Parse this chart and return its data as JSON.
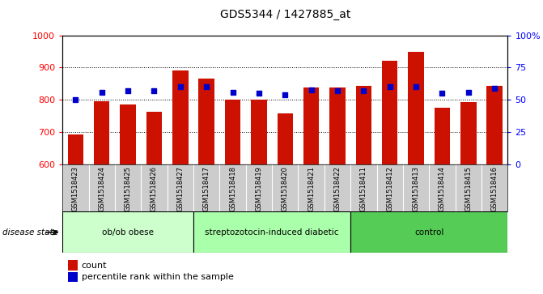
{
  "title": "GDS5344 / 1427885_at",
  "samples": [
    "GSM1518423",
    "GSM1518424",
    "GSM1518425",
    "GSM1518426",
    "GSM1518427",
    "GSM1518417",
    "GSM1518418",
    "GSM1518419",
    "GSM1518420",
    "GSM1518421",
    "GSM1518422",
    "GSM1518411",
    "GSM1518412",
    "GSM1518413",
    "GSM1518414",
    "GSM1518415",
    "GSM1518416"
  ],
  "counts": [
    693,
    797,
    787,
    763,
    890,
    865,
    800,
    800,
    758,
    838,
    838,
    843,
    921,
    948,
    776,
    793,
    843
  ],
  "percentiles": [
    50,
    56,
    57,
    57,
    60,
    60,
    56,
    55,
    54,
    58,
    57,
    57,
    60,
    60,
    55,
    56,
    59
  ],
  "groups": [
    {
      "label": "ob/ob obese",
      "start": 0,
      "end": 5
    },
    {
      "label": "streptozotocin-induced diabetic",
      "start": 5,
      "end": 11
    },
    {
      "label": "control",
      "start": 11,
      "end": 17
    }
  ],
  "group_colors": [
    "#ccffcc",
    "#aaffaa",
    "#55cc55"
  ],
  "ylim_left": [
    600,
    1000
  ],
  "ylim_right": [
    0,
    100
  ],
  "yticks_left": [
    600,
    700,
    800,
    900,
    1000
  ],
  "yticks_right": [
    0,
    25,
    50,
    75,
    100
  ],
  "bar_color": "#cc1100",
  "dot_color": "#0000cc",
  "sample_bg_color": "#cccccc",
  "disease_state_label": "disease state",
  "legend_count_label": "count",
  "legend_percentile_label": "percentile rank within the sample"
}
